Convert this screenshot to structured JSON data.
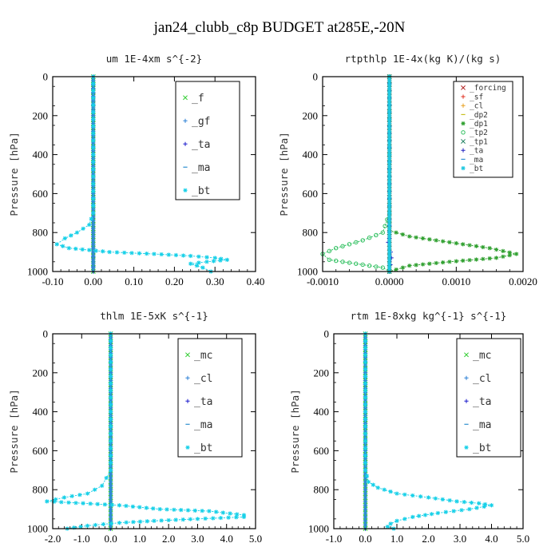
{
  "figure": {
    "title": "jan24_clubb_c8p  BUDGET at285E,-20N"
  },
  "chart_data": [
    {
      "type": "line",
      "title": "um  1E-4xm s^{-2}",
      "ylabel": "Pressure [hPa]",
      "xlim": [
        -0.1,
        0.4
      ],
      "ylim": [
        1000,
        0
      ],
      "xticks": [
        "-0.10",
        "0.00",
        "0.10",
        "0.20",
        "0.30",
        "0.40"
      ],
      "yticks": [
        "0",
        "200",
        "400",
        "600",
        "800",
        "1000"
      ],
      "legend_position": "top-right",
      "colors": {
        "_f": "#2ecc2e",
        "_gf": "#2a7fd6",
        "_ta": "#1a1acc",
        "_ma": "#2f8fd0",
        "_bt": "#16d0e8"
      },
      "series": [
        {
          "name": "_f",
          "x": [
            0.0,
            0.0,
            0.0,
            0.0,
            0.0,
            0.0,
            0.0
          ],
          "y": [
            0,
            200,
            400,
            600,
            800,
            900,
            1000
          ]
        },
        {
          "name": "_gf",
          "x": [
            0,
            0,
            0,
            0,
            0,
            0,
            0,
            0,
            0,
            0
          ],
          "y": [
            0,
            170,
            200,
            400,
            600,
            800,
            860,
            900,
            950,
            1000
          ]
        },
        {
          "name": "_ta",
          "x": [
            0,
            0,
            0,
            0,
            0,
            0
          ],
          "y": [
            0,
            200,
            400,
            600,
            800,
            1000
          ]
        },
        {
          "name": "_ma",
          "x": [
            0,
            0,
            0,
            0,
            0,
            0
          ],
          "y": [
            0,
            200,
            400,
            600,
            800,
            1000
          ]
        },
        {
          "name": "_bt",
          "x": [
            0.0,
            0.0,
            0.0,
            -0.01,
            -0.04,
            -0.07,
            -0.09,
            -0.06,
            0.04,
            0.15,
            0.24,
            0.3,
            0.33,
            0.28,
            0.24,
            0.27,
            0.29
          ],
          "y": [
            0,
            400,
            700,
            760,
            800,
            830,
            860,
            880,
            900,
            910,
            920,
            930,
            940,
            950,
            960,
            980,
            1000
          ]
        }
      ]
    },
    {
      "type": "line",
      "title": "rtpthlp  1E-4x(kg K)/(kg s)",
      "ylabel": "Pressure [hPa]",
      "xlim": [
        -0.001,
        0.002
      ],
      "ylim": [
        1000,
        0
      ],
      "xticks": [
        "-0.0010",
        "0.0000",
        "0.0010",
        "0.0020"
      ],
      "yticks": [
        "0",
        "200",
        "400",
        "600",
        "800",
        "1000"
      ],
      "legend_position": "top-right",
      "colors": {
        "_forcing": "#b02020",
        "_sf": "#e03020",
        "_cl": "#e8a020",
        "_dp2": "#c8c020",
        "_dp1": "#30a030",
        "_tp2": "#30c060",
        "_tp1": "#208060",
        "_ta": "#2020c0",
        "_ma": "#2f8fd0",
        "_bt": "#20c8e0"
      },
      "series": [
        {
          "name": "_forcing",
          "x": [
            0,
            0,
            0,
            0,
            0,
            0
          ],
          "y": [
            0,
            200,
            400,
            600,
            800,
            1000
          ]
        },
        {
          "name": "_sf",
          "x": [
            0,
            0,
            0,
            0,
            0,
            0
          ],
          "y": [
            0,
            200,
            400,
            600,
            800,
            1000
          ]
        },
        {
          "name": "_cl",
          "x": [
            0,
            0,
            0,
            0,
            0,
            0
          ],
          "y": [
            0,
            200,
            400,
            600,
            800,
            1000
          ]
        },
        {
          "name": "_dp2",
          "x": [
            0,
            0,
            0,
            0,
            0,
            0
          ],
          "y": [
            0,
            200,
            400,
            600,
            800,
            1000
          ]
        },
        {
          "name": "_dp1",
          "x": [
            0.0,
            0.0,
            0.0,
            0.0,
            0.0003,
            0.0009,
            0.0015,
            0.0019,
            0.0016,
            0.0009,
            0.0003,
            0.0
          ],
          "y": [
            0,
            400,
            700,
            790,
            820,
            850,
            880,
            910,
            930,
            950,
            970,
            1000
          ]
        },
        {
          "name": "_tp2",
          "x": [
            0.0,
            0.0,
            0.0,
            -0.0001,
            -0.0004,
            -0.0008,
            -0.001,
            -0.0009,
            -0.0005,
            -0.0001,
            0.0
          ],
          "y": [
            0,
            400,
            700,
            800,
            840,
            880,
            910,
            940,
            960,
            980,
            1000
          ]
        },
        {
          "name": "_tp1",
          "x": [
            0,
            0,
            0,
            0,
            0,
            0
          ],
          "y": [
            0,
            200,
            400,
            600,
            800,
            1000
          ]
        },
        {
          "name": "_ta",
          "x": [
            0.0,
            0.0,
            0.0,
            0.0,
            -2e-05,
            2e-05,
            3e-05,
            0.0
          ],
          "y": [
            0,
            400,
            700,
            830,
            850,
            900,
            930,
            1000
          ]
        },
        {
          "name": "_ma",
          "x": [
            0,
            0,
            0,
            0,
            0,
            0
          ],
          "y": [
            0,
            200,
            400,
            600,
            800,
            1000
          ]
        },
        {
          "name": "_bt",
          "x": [
            0,
            0,
            0,
            0,
            0,
            0
          ],
          "y": [
            0,
            200,
            400,
            600,
            800,
            1000
          ]
        }
      ]
    },
    {
      "type": "line",
      "title": "thlm  1E-5xK s^{-1}",
      "ylabel": "Pressure [hPa]",
      "xlim": [
        -2.0,
        5.0
      ],
      "ylim": [
        1000,
        0
      ],
      "xticks": [
        "-2.0",
        "-1.0",
        "0.0",
        "1.0",
        "2.0",
        "3.0",
        "4.0",
        "5.0"
      ],
      "yticks": [
        "0",
        "200",
        "400",
        "600",
        "800",
        "1000"
      ],
      "legend_position": "top-right",
      "colors": {
        "_mc": "#2ecc2e",
        "_cl": "#2a7fd6",
        "_ta": "#1a1acc",
        "_ma": "#2f8fd0",
        "_bt": "#16d0e8"
      },
      "series": [
        {
          "name": "_mc",
          "x": [
            0,
            0,
            0,
            0,
            0,
            0,
            0
          ],
          "y": [
            0,
            200,
            400,
            600,
            800,
            900,
            1000
          ]
        },
        {
          "name": "_cl",
          "x": [
            0,
            0,
            0,
            0,
            0,
            0
          ],
          "y": [
            0,
            200,
            400,
            600,
            800,
            1000
          ]
        },
        {
          "name": "_ta",
          "x": [
            0,
            0,
            0,
            0,
            0,
            0
          ],
          "y": [
            0,
            200,
            400,
            600,
            800,
            1000
          ]
        },
        {
          "name": "_ma",
          "x": [
            0,
            0,
            0,
            0,
            0,
            0
          ],
          "y": [
            0,
            200,
            400,
            600,
            800,
            1000
          ]
        },
        {
          "name": "_bt",
          "x": [
            0.0,
            0.0,
            0.0,
            -0.3,
            -0.8,
            -1.6,
            -2.2,
            0.3,
            1.7,
            3.4,
            4.6,
            4.6,
            3.0,
            1.5,
            0.3,
            -0.8,
            -1.5
          ],
          "y": [
            0,
            400,
            700,
            780,
            820,
            840,
            860,
            880,
            900,
            910,
            930,
            940,
            950,
            960,
            970,
            985,
            1000
          ]
        }
      ]
    },
    {
      "type": "line",
      "title": "rtm  1E-8xkg kg^{-1} s^{-1}",
      "ylabel": "Pressure [hPa]",
      "xlim": [
        -1.0,
        5.0
      ],
      "ylim": [
        1000,
        0
      ],
      "xticks": [
        "-1.0",
        "0.0",
        "1.0",
        "2.0",
        "3.0",
        "4.0",
        "5.0"
      ],
      "yticks": [
        "0",
        "200",
        "400",
        "600",
        "800",
        "1000"
      ],
      "legend_position": "top-right",
      "colors": {
        "_mc": "#2ecc2e",
        "_cl": "#2a7fd6",
        "_ta": "#1a1acc",
        "_ma": "#2f8fd0",
        "_bt": "#16d0e8"
      },
      "series": [
        {
          "name": "_mc",
          "x": [
            0,
            0,
            0,
            0,
            0,
            0,
            0
          ],
          "y": [
            0,
            200,
            400,
            600,
            800,
            900,
            1000
          ]
        },
        {
          "name": "_cl",
          "x": [
            0,
            0,
            0,
            0,
            0,
            0
          ],
          "y": [
            0,
            200,
            400,
            600,
            800,
            1000
          ]
        },
        {
          "name": "_ta",
          "x": [
            0,
            0,
            0,
            0,
            0,
            0
          ],
          "y": [
            0,
            200,
            400,
            600,
            800,
            1000
          ]
        },
        {
          "name": "_ma",
          "x": [
            0,
            0,
            0,
            0,
            0,
            0
          ],
          "y": [
            0,
            200,
            400,
            600,
            800,
            1000
          ]
        },
        {
          "name": "_bt",
          "x": [
            0.0,
            0.0,
            0.0,
            0.1,
            0.4,
            1.0,
            2.0,
            2.9,
            3.6,
            4.0,
            3.3,
            2.3,
            1.5,
            1.0,
            0.8,
            0.7,
            0.9
          ],
          "y": [
            0,
            400,
            700,
            760,
            790,
            820,
            840,
            860,
            870,
            880,
            900,
            920,
            940,
            960,
            975,
            990,
            1000
          ]
        }
      ]
    }
  ]
}
